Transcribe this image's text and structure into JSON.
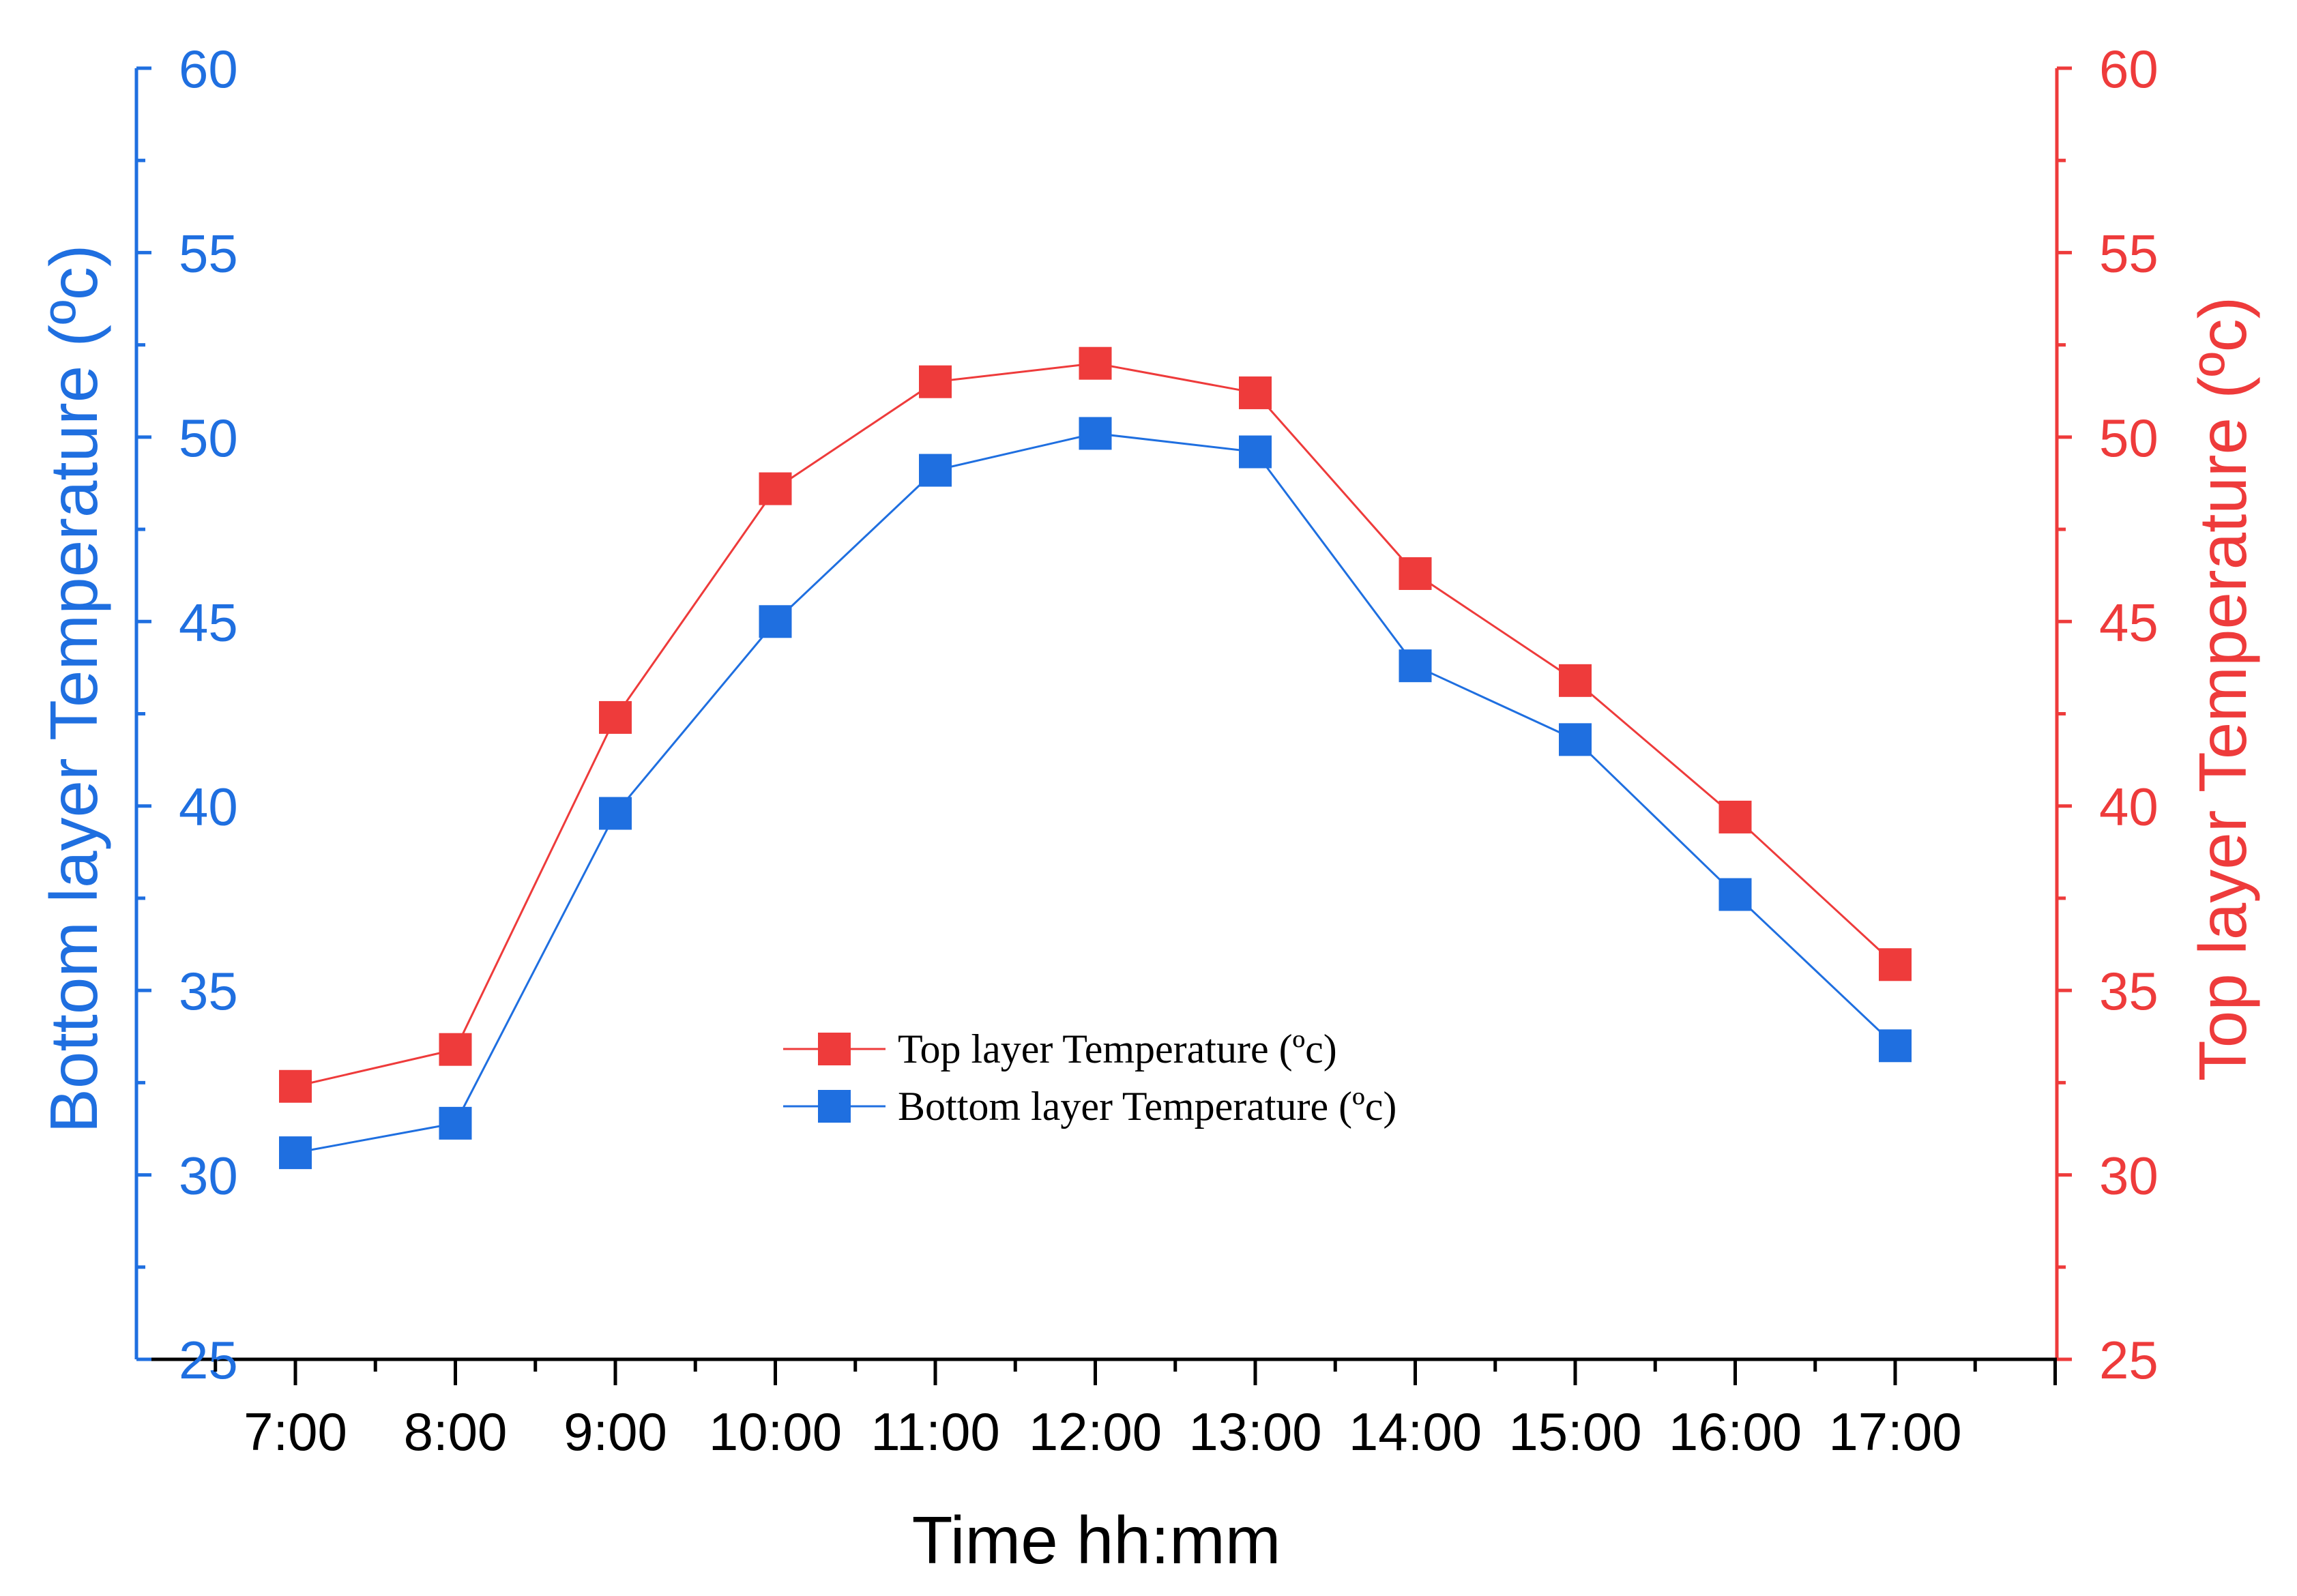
{
  "chart_data": {
    "type": "line",
    "title": "",
    "xlabel": "Time hh:mm",
    "ylabel_left": "Bottom layer Temperature (ºc)",
    "ylabel_right": "Top layer Temperature (ºc)",
    "categories": [
      "7:00",
      "8:00",
      "9:00",
      "10:00",
      "11:00",
      "12:00",
      "13:00",
      "14:00",
      "15:00",
      "16:00",
      "17:00"
    ],
    "ylim": [
      25,
      60
    ],
    "yticks": [
      "25",
      "30",
      "35",
      "40",
      "45",
      "50",
      "55",
      "60"
    ],
    "grid": false,
    "legend_position": "center",
    "series": [
      {
        "name": "Top layer Temperature (ºc)",
        "axis": "right",
        "color": "#ee3b3b",
        "values": [
          32.4,
          33.4,
          42.4,
          48.6,
          51.5,
          52.0,
          51.2,
          46.3,
          43.4,
          39.7,
          35.7
        ]
      },
      {
        "name": "Bottom layer Temperature (ºc)",
        "axis": "left",
        "color": "#1f6fe0",
        "values": [
          30.6,
          31.4,
          39.8,
          45.0,
          49.1,
          50.1,
          49.6,
          43.8,
          41.8,
          37.6,
          33.5
        ]
      }
    ],
    "colors": {
      "left_axis": "#1f6fe0",
      "right_axis": "#ee3b3b",
      "x_axis": "#000000"
    }
  }
}
